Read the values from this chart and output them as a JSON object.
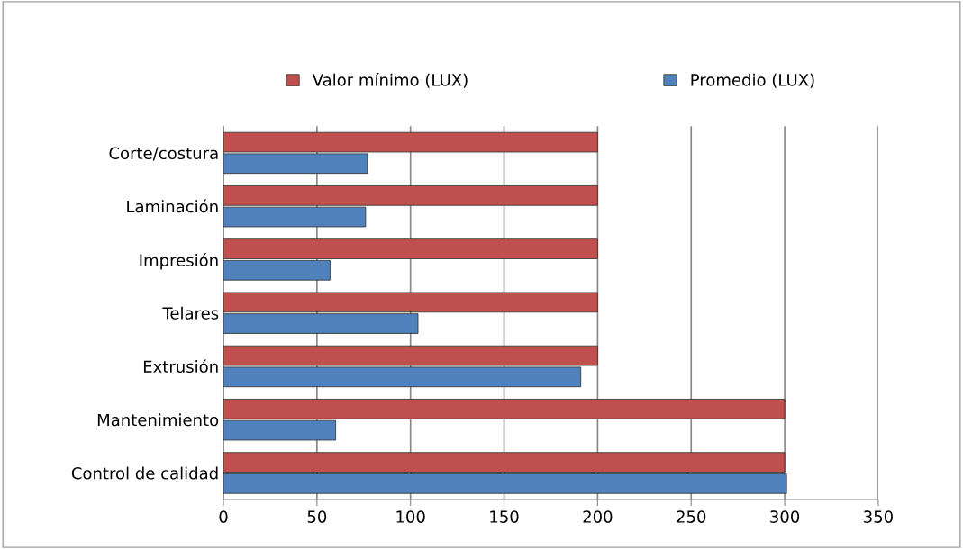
{
  "chart_data": {
    "type": "bar",
    "orientation": "horizontal",
    "categories": [
      "Corte/costura",
      "Laminación",
      "Impresión",
      "Telares",
      "Extrusión",
      "Mantenimiento",
      "Control de calidad"
    ],
    "series": [
      {
        "name": "Valor mínimo (LUX)",
        "color": "#c0504d",
        "values": [
          200,
          200,
          200,
          200,
          200,
          300,
          300
        ]
      },
      {
        "name": "Promedio (LUX)",
        "color": "#4f81bd",
        "values": [
          77,
          76,
          57,
          104,
          191,
          60,
          301
        ]
      }
    ],
    "xlim": [
      0,
      350
    ],
    "xticks": [
      0,
      50,
      100,
      150,
      200,
      250,
      300,
      350
    ],
    "grid": "x",
    "legend": "top"
  }
}
